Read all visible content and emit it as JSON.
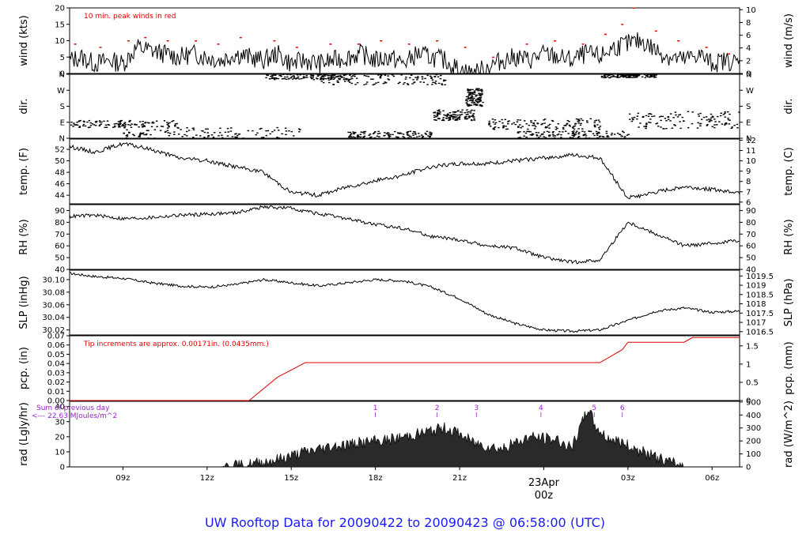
{
  "title": "UW Rooftop Data for 20090422  to  20090423 @ 06:58:00  (UTC)",
  "colors": {
    "title": "#1a1aff",
    "precip": "#e00000",
    "peak": "#e00000",
    "markers": "#9a1fd0",
    "date_label": "#e00000"
  },
  "time_axis": {
    "tick_labels": [
      "09z",
      "12z",
      "15z",
      "18z",
      "21z",
      "00z",
      "03z",
      "06z"
    ],
    "tick_hours": [
      3,
      6,
      9,
      12,
      15,
      18,
      21,
      24
    ],
    "date_label": "23Apr",
    "date_sub": "00z",
    "range_hours": [
      1.1,
      24.98
    ]
  },
  "chart_data": [
    {
      "type": "line",
      "id": "wind",
      "ylabel": "wind (kts)",
      "ylabel_right": "wind (m/s)",
      "ylim": [
        0,
        20
      ],
      "yticks": [
        0,
        5,
        10,
        15,
        20
      ],
      "yticks_right": [
        0,
        2,
        4,
        6,
        8,
        10
      ],
      "right_scale": 1.944,
      "annotation": "10 min. peak winds in red",
      "series": [
        {
          "x": [
            1.1,
            1.5,
            2,
            2.5,
            3,
            3.5,
            4,
            4.5,
            5,
            5.5,
            6,
            6.5,
            7,
            7.5,
            8,
            8.5,
            9,
            9.5,
            10,
            10.5,
            11,
            11.5,
            12,
            12.5,
            13,
            13.5,
            14,
            14.5,
            15,
            15.5,
            16,
            16.5,
            17,
            17.5,
            18,
            18.5,
            19,
            19.5,
            20,
            20.5,
            21,
            21.5,
            22,
            22.5,
            23,
            23.5,
            24,
            24.5,
            25
          ],
          "values": [
            4,
            5,
            3,
            4,
            3,
            8,
            7,
            6,
            5,
            6,
            5,
            4,
            6,
            5,
            4,
            6,
            3,
            4,
            3,
            4,
            5,
            6,
            4,
            5,
            3,
            6,
            5,
            4,
            1,
            0,
            2,
            4,
            5,
            4,
            6,
            5,
            4,
            6,
            5,
            8,
            9,
            10,
            7,
            5,
            4,
            6,
            3,
            4,
            3
          ]
        }
      ],
      "peaks": {
        "x": [
          1.3,
          2.2,
          3.2,
          3.8,
          4.6,
          5.6,
          6.4,
          7.2,
          8.4,
          9.2,
          10.4,
          11.4,
          12.2,
          13.2,
          14.2,
          15.2,
          16.2,
          17.4,
          18.4,
          19.4,
          20.2,
          20.8,
          21.2,
          22.0,
          22.8,
          23.8,
          24.6
        ],
        "values": [
          9,
          8,
          10,
          11,
          10,
          10,
          9,
          11,
          10,
          8,
          9,
          9,
          10,
          9,
          10,
          8,
          5,
          9,
          10,
          9,
          12,
          15,
          20,
          13,
          10,
          8,
          6
        ]
      }
    },
    {
      "type": "scatter",
      "id": "dir",
      "ylabel": "dir.",
      "ylabel_right": "dir.",
      "ylim": [
        0,
        360
      ],
      "ytick_values": [
        0,
        90,
        180,
        270,
        360
      ],
      "ytick_labels": [
        "N",
        "E",
        "S",
        "W",
        "N"
      ],
      "clusters": [
        {
          "x": [
            1.1,
            5.0
          ],
          "y": [
            60,
            100
          ]
        },
        {
          "x": [
            3.0,
            9.5
          ],
          "y": [
            0,
            60
          ]
        },
        {
          "x": [
            8.0,
            11.0
          ],
          "y": [
            330,
            360
          ]
        },
        {
          "x": [
            10.0,
            14.5
          ],
          "y": [
            300,
            360
          ]
        },
        {
          "x": [
            11.0,
            14.0
          ],
          "y": [
            0,
            40
          ]
        },
        {
          "x": [
            14.0,
            15.5
          ],
          "y": [
            100,
            160
          ]
        },
        {
          "x": [
            15.2,
            15.8
          ],
          "y": [
            180,
            280
          ]
        },
        {
          "x": [
            16.0,
            20.0
          ],
          "y": [
            50,
            110
          ]
        },
        {
          "x": [
            17.0,
            21.0
          ],
          "y": [
            0,
            40
          ]
        },
        {
          "x": [
            20.0,
            22.0
          ],
          "y": [
            340,
            360
          ]
        },
        {
          "x": [
            21.0,
            25.0
          ],
          "y": [
            50,
            150
          ]
        }
      ]
    },
    {
      "type": "line",
      "id": "temp",
      "ylabel": "temp. (F)",
      "ylabel_right": "temp. (C)",
      "ylim": [
        42.5,
        53.8
      ],
      "yticks": [
        44,
        46,
        48,
        50,
        52
      ],
      "yticks_right": [
        6,
        7,
        8,
        9,
        10,
        11,
        12
      ],
      "right_scale": "c_to_f",
      "series": [
        {
          "x": [
            1.1,
            2,
            3,
            4,
            5,
            6,
            7,
            8,
            9,
            10,
            11,
            12,
            13,
            14,
            15,
            16,
            17,
            18,
            19,
            20,
            21,
            22,
            23,
            24,
            25
          ],
          "values": [
            52.5,
            51.5,
            53,
            52,
            50.5,
            50,
            49,
            48,
            44.5,
            44,
            45.5,
            46.5,
            47.5,
            49,
            49.5,
            49.5,
            50,
            50.5,
            51,
            50.5,
            43.5,
            44.5,
            45.5,
            45,
            44.5
          ]
        }
      ]
    },
    {
      "type": "line",
      "id": "rh",
      "ylabel": "RH (%)",
      "ylabel_right": "RH (%)",
      "ylim": [
        40,
        95
      ],
      "yticks": [
        40,
        50,
        60,
        70,
        80,
        90
      ],
      "yticks_right": [
        40,
        50,
        60,
        70,
        80,
        90
      ],
      "series": [
        {
          "x": [
            1.1,
            2,
            3,
            4,
            5,
            6,
            7,
            8,
            9,
            10,
            11,
            12,
            13,
            14,
            15,
            16,
            17,
            18,
            19,
            20,
            21,
            22,
            23,
            24,
            25
          ],
          "values": [
            85,
            86,
            83,
            84,
            86,
            87,
            88,
            93,
            92,
            87,
            83,
            78,
            75,
            68,
            65,
            60,
            58,
            50,
            46,
            48,
            80,
            70,
            60,
            62,
            65
          ]
        }
      ]
    },
    {
      "type": "line",
      "id": "slp",
      "ylabel": "SLP (inHg)",
      "ylabel_right": "SLP (hPa)",
      "ylim": [
        30.012,
        30.115
      ],
      "yticks": [
        30.02,
        30.04,
        30.06,
        30.08,
        30.1
      ],
      "yticks_right": [
        1016.5,
        1017,
        1017.5,
        1018,
        1018.5,
        1019,
        1019.5
      ],
      "right_scale": "hpa_to_inhg",
      "series": [
        {
          "x": [
            1.1,
            2,
            3,
            4,
            5,
            6,
            7,
            8,
            9,
            10,
            11,
            12,
            13,
            14,
            15,
            16,
            17,
            18,
            19,
            20,
            21,
            22,
            23,
            24,
            25
          ],
          "values": [
            30.11,
            30.105,
            30.102,
            30.095,
            30.09,
            30.088,
            30.092,
            30.1,
            30.095,
            30.09,
            30.095,
            30.1,
            30.098,
            30.088,
            30.07,
            30.045,
            30.03,
            30.02,
            30.018,
            30.02,
            30.035,
            30.05,
            30.055,
            30.048,
            30.05
          ]
        }
      ]
    },
    {
      "type": "area",
      "id": "pcp",
      "ylabel": "pcp. (in)",
      "ylabel_right": "pcp. (mm)",
      "ylim": [
        0,
        0.07
      ],
      "yticks": [
        0.0,
        0.01,
        0.02,
        0.03,
        0.04,
        0.05,
        0.06,
        0.07
      ],
      "yticks_right": [
        0,
        0.5,
        1,
        1.5
      ],
      "right_scale": "mm_to_in",
      "annotation": "Tip increments are approx. 0.00171in. (0.0435mm.)",
      "series": [
        {
          "x": [
            1.1,
            7.5,
            8.5,
            9.5,
            20.0,
            20.8,
            21.0,
            23.0,
            23.3,
            25.0
          ],
          "values": [
            0,
            0,
            0.025,
            0.041,
            0.041,
            0.055,
            0.063,
            0.063,
            0.068,
            0.068
          ]
        }
      ]
    },
    {
      "type": "area",
      "id": "rad",
      "ylabel": "rad (Lgly/hr)",
      "ylabel_right": "rad (W/m^2)",
      "ylim": [
        0,
        43.5
      ],
      "yticks": [
        0,
        10,
        20,
        30,
        40
      ],
      "yticks_right": [
        0,
        100,
        200,
        300,
        400,
        500
      ],
      "right_scale": 0.0861,
      "annotation": "Sum of previous day",
      "annotation2": "<--- 22.63 MJoules/m^2",
      "markers": [
        "1",
        "2",
        "3",
        "4",
        "5",
        "6"
      ],
      "marker_hours": [
        12.0,
        14.2,
        15.6,
        17.9,
        19.8,
        20.8
      ],
      "series": [
        {
          "x": [
            1.1,
            6.5,
            7.3,
            8.5,
            9.5,
            10.5,
            11.5,
            12.5,
            13.5,
            14.5,
            15.0,
            15.5,
            16.5,
            17.5,
            18.5,
            19.0,
            19.6,
            19.8,
            20.2,
            20.8,
            21.5,
            22.5,
            23.0,
            25.0
          ],
          "values": [
            0,
            0,
            1,
            5,
            10,
            14,
            16,
            18,
            22,
            26,
            22,
            16,
            12,
            20,
            18,
            12,
            40,
            28,
            20,
            16,
            10,
            3,
            0,
            0
          ]
        }
      ]
    }
  ]
}
